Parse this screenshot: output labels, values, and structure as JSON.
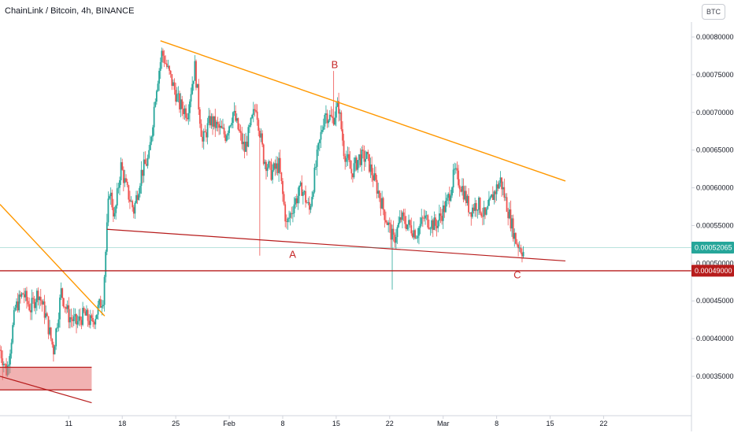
{
  "header": {
    "title": "ChainLink / Bitcoin, 4h, BINANCE",
    "currency": "BTC"
  },
  "colors": {
    "up": "#26a69a",
    "down": "#ef5350",
    "trend": "#ff9800",
    "support": "#b71c1c",
    "zone_fill": "#e57373",
    "last_price": "#26a69a",
    "grid": "#f0f3fa"
  },
  "chart_data": {
    "type": "candlestick",
    "symbol": "ChainLink / Bitcoin",
    "timeframe": "4h",
    "exchange": "BINANCE",
    "y_axis": {
      "ticks": [
        0.0008,
        0.00075,
        0.0007,
        0.00065,
        0.0006,
        0.00055,
        0.0005,
        0.00045,
        0.0004,
        0.00035
      ],
      "tick_labels": [
        "0.00080000",
        "0.00075000",
        "0.00070000",
        "0.00065000",
        "0.00060000",
        "0.00055000",
        "0.00050000",
        "0.00045000",
        "0.00040000",
        "0.00035000"
      ],
      "range": [
        0.0003,
        0.00082
      ]
    },
    "x_axis": {
      "ticks": [
        {
          "label": "11",
          "day": 11
        },
        {
          "label": "18",
          "day": 18
        },
        {
          "label": "25",
          "day": 25
        },
        {
          "label": "Feb",
          "day": 32
        },
        {
          "label": "8",
          "day": 39
        },
        {
          "label": "15",
          "day": 46
        },
        {
          "label": "22",
          "day": 53
        },
        {
          "label": "Mar",
          "day": 60
        },
        {
          "label": "8",
          "day": 67
        },
        {
          "label": "15",
          "day": 74
        },
        {
          "label": "22",
          "day": 81
        }
      ],
      "range": [
        2.0,
        92.5
      ]
    },
    "price_path": [
      [
        2.0,
        0.000385
      ],
      [
        2.9,
        0.000355
      ],
      [
        4.0,
        0.00044
      ],
      [
        5.0,
        0.00046
      ],
      [
        6.0,
        0.00044
      ],
      [
        7.0,
        0.000462
      ],
      [
        8.0,
        0.00043
      ],
      [
        9.0,
        0.000385
      ],
      [
        10.0,
        0.000462
      ],
      [
        11.0,
        0.00043
      ],
      [
        12.0,
        0.00042
      ],
      [
        13.0,
        0.000432
      ],
      [
        14.0,
        0.00042
      ],
      [
        15.5,
        0.000455
      ],
      [
        16.3,
        0.0006
      ],
      [
        17.0,
        0.00056
      ],
      [
        17.8,
        0.00063
      ],
      [
        18.5,
        0.0006
      ],
      [
        19.5,
        0.00057
      ],
      [
        20.5,
        0.00062
      ],
      [
        21.5,
        0.00064
      ],
      [
        22.4,
        0.00073
      ],
      [
        23.2,
        0.00078
      ],
      [
        24.5,
        0.00074
      ],
      [
        25.5,
        0.00071
      ],
      [
        26.5,
        0.0007
      ],
      [
        27.5,
        0.00076
      ],
      [
        28.5,
        0.00066
      ],
      [
        29.5,
        0.00069
      ],
      [
        30.5,
        0.00068
      ],
      [
        31.5,
        0.00067
      ],
      [
        32.5,
        0.0007
      ],
      [
        34.0,
        0.00065
      ],
      [
        35.5,
        0.00071
      ],
      [
        36.5,
        0.00064
      ],
      [
        37.5,
        0.00062
      ],
      [
        38.5,
        0.00063
      ],
      [
        39.5,
        0.00055
      ],
      [
        40.5,
        0.00058
      ],
      [
        41.5,
        0.0006
      ],
      [
        42.5,
        0.00057
      ],
      [
        43.5,
        0.00064
      ],
      [
        44.5,
        0.0007
      ],
      [
        45.5,
        0.00069
      ],
      [
        46.3,
        0.00071
      ],
      [
        47.0,
        0.00065
      ],
      [
        48.0,
        0.00062
      ],
      [
        49.0,
        0.00064
      ],
      [
        50.0,
        0.00064
      ],
      [
        51.5,
        0.000595
      ],
      [
        52.5,
        0.00056
      ],
      [
        53.5,
        0.00053
      ],
      [
        54.5,
        0.00056
      ],
      [
        55.5,
        0.00055
      ],
      [
        56.5,
        0.00054
      ],
      [
        57.5,
        0.00056
      ],
      [
        59.0,
        0.00055
      ],
      [
        60.5,
        0.00058
      ],
      [
        61.5,
        0.00062
      ],
      [
        62.5,
        0.0006
      ],
      [
        63.5,
        0.00057
      ],
      [
        64.5,
        0.00058
      ],
      [
        65.5,
        0.00056
      ],
      [
        66.5,
        0.00059
      ],
      [
        67.5,
        0.00061
      ],
      [
        68.5,
        0.00057
      ],
      [
        69.5,
        0.00053
      ],
      [
        70.5,
        0.000515
      ]
    ],
    "current_price": {
      "value": 0.00052065,
      "label": "0.00052065"
    },
    "support_level": {
      "value": 0.00049,
      "label": "0.00049000"
    },
    "annotations": [
      {
        "label": "A",
        "day": 40.3,
        "price": 0.000507
      },
      {
        "label": "B",
        "day": 45.8,
        "price": 0.000759
      },
      {
        "label": "C",
        "day": 69.7,
        "price": 0.00048
      }
    ],
    "trendlines": [
      {
        "name": "upper-resistance",
        "from": [
          23.0,
          0.000795
        ],
        "to": [
          76.0,
          0.000609
        ]
      },
      {
        "name": "lower-support",
        "from": [
          16.0,
          0.000545
        ],
        "to": [
          76.0,
          0.000503
        ]
      },
      {
        "name": "early-resistance",
        "from": [
          2.0,
          0.000578
        ],
        "to": [
          15.7,
          0.00043
        ]
      },
      {
        "name": "early-support",
        "from": [
          2.0,
          0.00035
        ],
        "to": [
          14.0,
          0.000315
        ]
      }
    ],
    "zones": [
      {
        "name": "demand-zone",
        "from_day": 2.0,
        "to_day": 14.0,
        "price_high": 0.000362,
        "price_low": 0.000332
      }
    ],
    "grid": false,
    "legend": "none"
  }
}
